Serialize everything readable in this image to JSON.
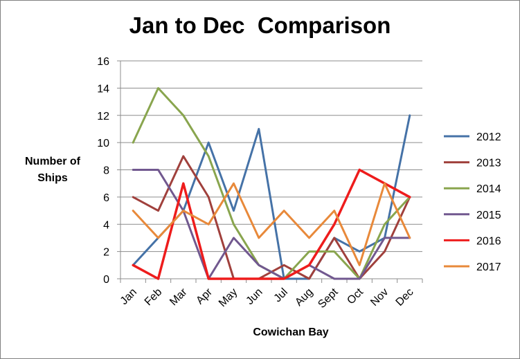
{
  "chart_data": {
    "type": "line",
    "title": "Jan to Dec  Comparison",
    "xlabel": "Cowichan Bay",
    "ylabel": "Number of Ships",
    "categories": [
      "Jan",
      "Feb",
      "Mar",
      "Apr",
      "May",
      "Jun",
      "Jul",
      "Aug",
      "Sept",
      "Oct",
      "Nov",
      "Dec"
    ],
    "ylim": [
      0,
      16
    ],
    "yticks": [
      0,
      2,
      4,
      6,
      8,
      10,
      12,
      14,
      16
    ],
    "grid": true,
    "legend_position": "right",
    "series": [
      {
        "name": "2012",
        "color": "#4572a7",
        "values": [
          1,
          3,
          5,
          10,
          5,
          11,
          0,
          0,
          3,
          2,
          3,
          12
        ]
      },
      {
        "name": "2013",
        "color": "#a0403c",
        "values": [
          6,
          5,
          9,
          6,
          0,
          0,
          1,
          0,
          3,
          0,
          2,
          6
        ]
      },
      {
        "name": "2014",
        "color": "#89a54e",
        "values": [
          10,
          14,
          12,
          9,
          4,
          1,
          0,
          2,
          2,
          0,
          4,
          6
        ]
      },
      {
        "name": "2015",
        "color": "#71588f",
        "values": [
          8,
          8,
          5,
          0,
          3,
          1,
          0,
          1,
          0,
          0,
          3,
          3
        ]
      },
      {
        "name": "2016",
        "color": "#ee1c1c",
        "values": [
          1,
          0,
          7,
          0,
          0,
          0,
          0,
          1,
          4,
          8,
          7,
          6
        ]
      },
      {
        "name": "2017",
        "color": "#e8893a",
        "values": [
          5,
          3,
          5,
          4,
          7,
          3,
          5,
          3,
          5,
          1,
          7,
          3
        ]
      }
    ]
  }
}
